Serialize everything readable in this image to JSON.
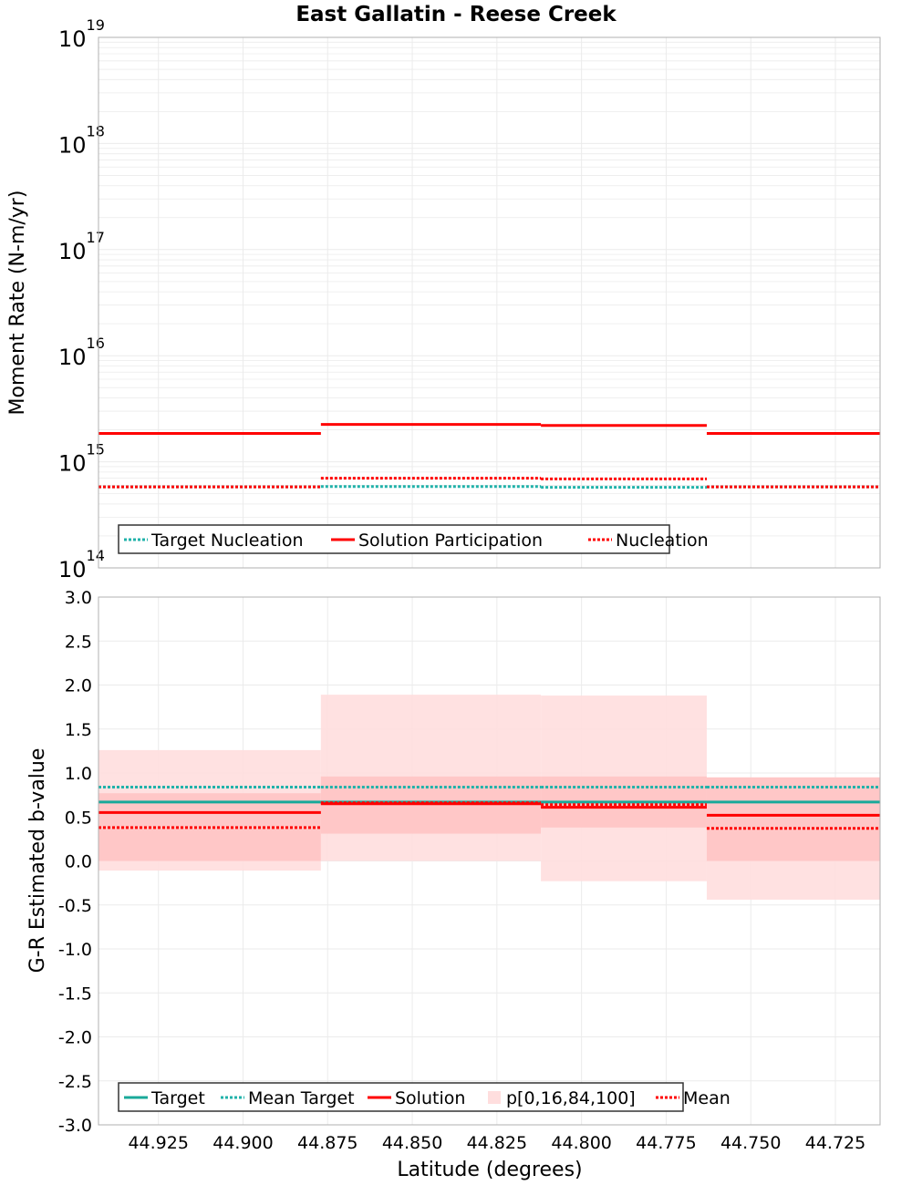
{
  "title": "East Gallatin - Reese Creek",
  "xlabel": "Latitude (degrees)",
  "colors": {
    "solution": "#ff0000",
    "target": "#19a99a",
    "mean_target": "#20b2aa",
    "band_outer": "#ffdede",
    "band_inner": "#ffc4c4",
    "grid": "#ebebeb",
    "frame": "#b0b0b0"
  },
  "chart_data": [
    {
      "id": "moment",
      "type": "line",
      "step": true,
      "ylabel": "Moment Rate (N-m/yr)",
      "yscale": "log",
      "ylim": [
        100000000000000.0,
        1e+19
      ],
      "xlim": [
        44.9427,
        44.7118
      ],
      "x_reversed": true,
      "grid": true,
      "y_major_ticks": [
        {
          "value": 100000000000000.0,
          "base": "10",
          "exp": "14"
        },
        {
          "value": 1000000000000000.0,
          "base": "10",
          "exp": "15"
        },
        {
          "value": 1e+16,
          "base": "10",
          "exp": "16"
        },
        {
          "value": 1e+17,
          "base": "10",
          "exp": "17"
        },
        {
          "value": 1e+18,
          "base": "10",
          "exp": "18"
        },
        {
          "value": 1e+19,
          "base": "10",
          "exp": "19"
        }
      ],
      "sections": [
        {
          "x0": 44.9427,
          "x1": 44.877
        },
        {
          "x0": 44.877,
          "x1": 44.812
        },
        {
          "x0": 44.812,
          "x1": 44.763
        },
        {
          "x0": 44.763,
          "x1": 44.7118
        }
      ],
      "series": [
        {
          "name": "Target Nucleation",
          "style": "dotted",
          "color": "#20b2aa",
          "values": [
            580000000000000.0,
            585000000000000.0,
            575000000000000.0,
            580000000000000.0
          ]
        },
        {
          "name": "Solution Participation",
          "style": "solid",
          "color": "#ff0000",
          "values": [
            1850000000000000.0,
            2250000000000000.0,
            2200000000000000.0,
            1850000000000000.0
          ]
        },
        {
          "name": "Nucleation",
          "style": "dotted",
          "color": "#ff0000",
          "values": [
            580000000000000.0,
            700000000000000.0,
            690000000000000.0,
            580000000000000.0
          ]
        }
      ],
      "legend": {
        "placement": "bottom-left",
        "items": [
          {
            "label": "Target Nucleation",
            "style": "dotted",
            "color": "#20b2aa"
          },
          {
            "label": "Solution Participation",
            "style": "solid",
            "color": "#ff0000"
          },
          {
            "label": "Nucleation",
            "style": "dotted",
            "color": "#ff0000"
          }
        ]
      }
    },
    {
      "id": "bvalue",
      "type": "line",
      "step": true,
      "ylabel": "G-R Estimated b-value",
      "yscale": "linear",
      "ylim": [
        -3.0,
        3.0
      ],
      "xlim": [
        44.9427,
        44.7118
      ],
      "x_reversed": true,
      "grid": true,
      "y_ticks": [
        "-3.0",
        "-2.5",
        "-2.0",
        "-1.5",
        "-1.0",
        "-0.5",
        "0.0",
        "0.5",
        "1.0",
        "1.5",
        "2.0",
        "2.5",
        "3.0"
      ],
      "x_ticks": [
        "44.925",
        "44.900",
        "44.875",
        "44.850",
        "44.825",
        "44.800",
        "44.775",
        "44.750",
        "44.725"
      ],
      "sections": [
        {
          "x0": 44.9427,
          "x1": 44.877
        },
        {
          "x0": 44.877,
          "x1": 44.812
        },
        {
          "x0": 44.812,
          "x1": 44.763
        },
        {
          "x0": 44.763,
          "x1": 44.7118
        }
      ],
      "bands": {
        "name": "p[0,16,84,100]",
        "p0": [
          -0.11,
          0.0,
          -0.23,
          -0.44
        ],
        "p16": [
          0.0,
          0.31,
          0.38,
          0.0
        ],
        "p84": [
          0.77,
          0.96,
          0.96,
          0.95
        ],
        "p100": [
          1.26,
          1.89,
          1.88,
          0.95
        ]
      },
      "series": [
        {
          "name": "Target",
          "style": "solid",
          "color": "#19a99a",
          "values": [
            0.67,
            0.67,
            0.67,
            0.67
          ]
        },
        {
          "name": "Mean Target",
          "style": "dotted",
          "color": "#20b2aa",
          "values": [
            0.84,
            0.84,
            0.84,
            0.84
          ]
        },
        {
          "name": "Solution",
          "style": "solid",
          "color": "#ff0000",
          "values": [
            0.55,
            0.65,
            0.61,
            0.52
          ]
        },
        {
          "name": "Mean",
          "style": "dotted",
          "color": "#ff0000",
          "values": [
            0.38,
            0.66,
            0.64,
            0.37
          ]
        }
      ],
      "legend": {
        "placement": "bottom-left",
        "items": [
          {
            "label": "Target",
            "style": "solid",
            "color": "#19a99a"
          },
          {
            "label": "Mean Target",
            "style": "dotted",
            "color": "#20b2aa"
          },
          {
            "label": "Solution",
            "style": "solid",
            "color": "#ff0000"
          },
          {
            "label": "p[0,16,84,100]",
            "style": "box",
            "color": "#ffdede"
          },
          {
            "label": "Mean",
            "style": "dotted",
            "color": "#ff0000"
          }
        ]
      }
    }
  ]
}
